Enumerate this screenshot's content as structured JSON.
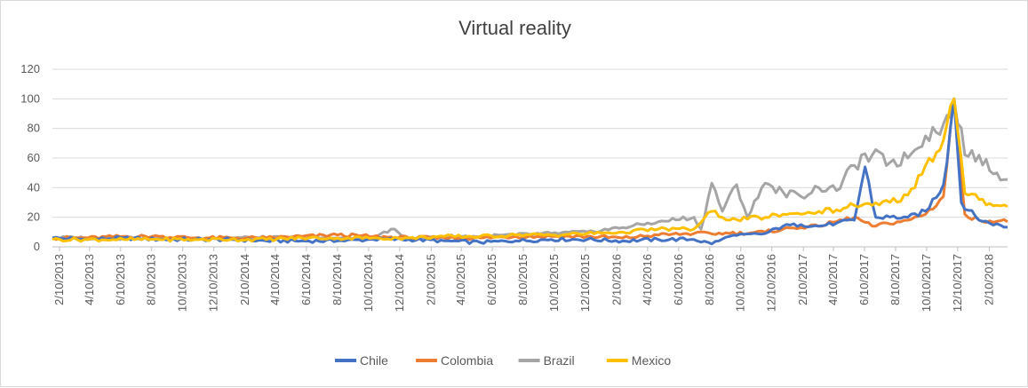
{
  "chart_data": {
    "type": "line",
    "title": "Virtual reality",
    "ylim": [
      0,
      120
    ],
    "yticks": [
      0,
      20,
      40,
      60,
      80,
      100,
      120
    ],
    "x_start": "2013-01-27",
    "x_step_days": 7,
    "x_count": 269,
    "x_tick_labels": [
      "2/10/2013",
      "4/10/2013",
      "6/10/2013",
      "8/10/2013",
      "10/10/2013",
      "12/10/2013",
      "2/10/2014",
      "4/10/2014",
      "6/10/2014",
      "8/10/2014",
      "10/10/2014",
      "12/10/2014",
      "2/10/2015",
      "4/10/2015",
      "6/10/2015",
      "8/10/2015",
      "10/10/2015",
      "12/10/2015",
      "2/10/2016",
      "4/10/2016",
      "6/10/2016",
      "8/10/2016",
      "10/10/2016",
      "12/10/2016",
      "2/10/2017",
      "4/10/2017",
      "6/10/2017",
      "8/10/2017",
      "10/10/2017",
      "12/10/2017",
      "2/10/2018"
    ],
    "grid": "horizontal",
    "legend": "bottom",
    "series": [
      {
        "name": "Chile",
        "color": "#4472C4",
        "anchors": [
          [
            0,
            6
          ],
          [
            10,
            5
          ],
          [
            20,
            6
          ],
          [
            30,
            5
          ],
          [
            40,
            5
          ],
          [
            50,
            5
          ],
          [
            60,
            4
          ],
          [
            70,
            4
          ],
          [
            80,
            4
          ],
          [
            90,
            5
          ],
          [
            100,
            5
          ],
          [
            110,
            4
          ],
          [
            120,
            3
          ],
          [
            130,
            4
          ],
          [
            140,
            5
          ],
          [
            150,
            5
          ],
          [
            160,
            4
          ],
          [
            170,
            5
          ],
          [
            180,
            5
          ],
          [
            185,
            2
          ],
          [
            190,
            7
          ],
          [
            200,
            9
          ],
          [
            205,
            14
          ],
          [
            210,
            15
          ],
          [
            215,
            14
          ],
          [
            220,
            16
          ],
          [
            225,
            18
          ],
          [
            228,
            54
          ],
          [
            231,
            20
          ],
          [
            240,
            20
          ],
          [
            245,
            24
          ],
          [
            250,
            42
          ],
          [
            253,
            100
          ],
          [
            255,
            30
          ],
          [
            260,
            18
          ],
          [
            270,
            12
          ],
          [
            280,
            12
          ],
          [
            290,
            10
          ],
          [
            300,
            12
          ],
          [
            310,
            14
          ],
          [
            315,
            44
          ],
          [
            318,
            15
          ],
          [
            324,
            10
          ],
          [
            326,
            8
          ]
        ]
      },
      {
        "name": "Colombia",
        "color": "#ED7D31",
        "anchors": [
          [
            0,
            6
          ],
          [
            10,
            6
          ],
          [
            20,
            7
          ],
          [
            30,
            7
          ],
          [
            40,
            6
          ],
          [
            50,
            6
          ],
          [
            60,
            6
          ],
          [
            70,
            7
          ],
          [
            80,
            8
          ],
          [
            90,
            7
          ],
          [
            100,
            6
          ],
          [
            110,
            6
          ],
          [
            120,
            6
          ],
          [
            130,
            7
          ],
          [
            140,
            7
          ],
          [
            150,
            7
          ],
          [
            160,
            6
          ],
          [
            170,
            8
          ],
          [
            180,
            9
          ],
          [
            190,
            9
          ],
          [
            200,
            10
          ],
          [
            205,
            12
          ],
          [
            210,
            13
          ],
          [
            215,
            14
          ],
          [
            220,
            17
          ],
          [
            225,
            20
          ],
          [
            230,
            14
          ],
          [
            240,
            18
          ],
          [
            245,
            22
          ],
          [
            250,
            34
          ],
          [
            253,
            100
          ],
          [
            256,
            22
          ],
          [
            260,
            18
          ],
          [
            270,
            17
          ],
          [
            280,
            16
          ],
          [
            290,
            16
          ],
          [
            300,
            16
          ],
          [
            310,
            17
          ],
          [
            315,
            30
          ],
          [
            318,
            18
          ],
          [
            324,
            15
          ],
          [
            326,
            16
          ]
        ]
      },
      {
        "name": "Brazil",
        "color": "#A5A5A5",
        "anchors": [
          [
            0,
            6
          ],
          [
            10,
            6
          ],
          [
            20,
            6
          ],
          [
            30,
            6
          ],
          [
            40,
            6
          ],
          [
            50,
            6
          ],
          [
            60,
            6
          ],
          [
            70,
            6
          ],
          [
            80,
            6
          ],
          [
            90,
            6
          ],
          [
            95,
            12
          ],
          [
            100,
            6
          ],
          [
            110,
            7
          ],
          [
            120,
            7
          ],
          [
            130,
            8
          ],
          [
            140,
            9
          ],
          [
            150,
            10
          ],
          [
            160,
            13
          ],
          [
            170,
            17
          ],
          [
            180,
            20
          ],
          [
            182,
            12
          ],
          [
            185,
            43
          ],
          [
            188,
            24
          ],
          [
            192,
            42
          ],
          [
            195,
            20
          ],
          [
            200,
            43
          ],
          [
            205,
            37
          ],
          [
            210,
            34
          ],
          [
            215,
            40
          ],
          [
            220,
            38
          ],
          [
            225,
            55
          ],
          [
            230,
            62
          ],
          [
            235,
            57
          ],
          [
            240,
            60
          ],
          [
            245,
            75
          ],
          [
            250,
            83
          ],
          [
            253,
            100
          ],
          [
            256,
            62
          ],
          [
            260,
            62
          ],
          [
            265,
            50
          ],
          [
            270,
            44
          ],
          [
            275,
            47
          ],
          [
            280,
            50
          ],
          [
            285,
            50
          ],
          [
            290,
            48
          ],
          [
            295,
            45
          ],
          [
            300,
            43
          ],
          [
            305,
            42
          ],
          [
            310,
            48
          ],
          [
            315,
            68
          ],
          [
            318,
            52
          ],
          [
            324,
            38
          ],
          [
            326,
            36
          ]
        ]
      },
      {
        "name": "Mexico",
        "color": "#FFC000",
        "anchors": [
          [
            0,
            5
          ],
          [
            10,
            5
          ],
          [
            20,
            5
          ],
          [
            30,
            5
          ],
          [
            40,
            5
          ],
          [
            50,
            5
          ],
          [
            60,
            5
          ],
          [
            70,
            6
          ],
          [
            80,
            6
          ],
          [
            90,
            6
          ],
          [
            100,
            6
          ],
          [
            110,
            7
          ],
          [
            120,
            7
          ],
          [
            130,
            8
          ],
          [
            140,
            8
          ],
          [
            150,
            9
          ],
          [
            160,
            10
          ],
          [
            170,
            12
          ],
          [
            180,
            12
          ],
          [
            185,
            24
          ],
          [
            190,
            18
          ],
          [
            200,
            20
          ],
          [
            205,
            22
          ],
          [
            210,
            22
          ],
          [
            215,
            24
          ],
          [
            220,
            25
          ],
          [
            225,
            28
          ],
          [
            230,
            28
          ],
          [
            235,
            30
          ],
          [
            240,
            35
          ],
          [
            245,
            55
          ],
          [
            250,
            72
          ],
          [
            253,
            100
          ],
          [
            256,
            36
          ],
          [
            260,
            32
          ],
          [
            265,
            28
          ],
          [
            270,
            26
          ],
          [
            280,
            28
          ],
          [
            290,
            28
          ],
          [
            300,
            24
          ],
          [
            310,
            30
          ],
          [
            315,
            50
          ],
          [
            318,
            40
          ],
          [
            324,
            24
          ],
          [
            326,
            24
          ]
        ]
      }
    ]
  }
}
